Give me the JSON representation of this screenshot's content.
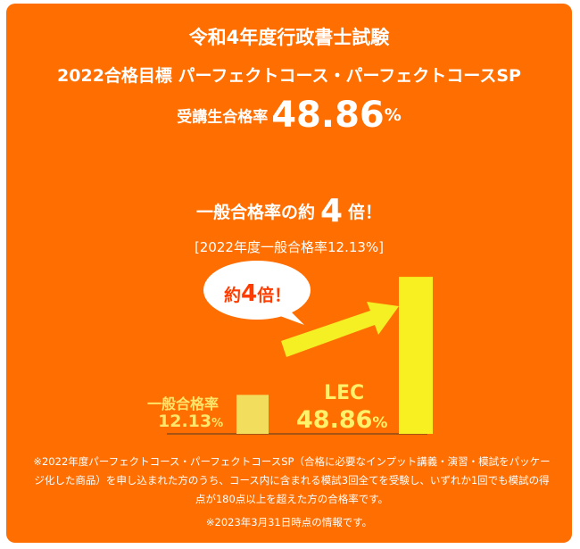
{
  "header": {
    "title": "令和4年度行政書士試験",
    "course": "2022合格目標 パーフェクトコース・パーフェクトコースSP",
    "pass_rate_label": "受講生合格率",
    "pass_rate_value": "48.86",
    "pass_rate_unit": "%"
  },
  "comparison": {
    "prefix": "一般合格率の約",
    "multiple": "4",
    "suffix": "倍！",
    "general_note": "[2022年度一般合格率12.13%]"
  },
  "chart_data": {
    "type": "bar",
    "categories": [
      "一般合格率",
      "LEC"
    ],
    "values": [
      12.13,
      48.86
    ],
    "value_labels": [
      "12.13",
      "48.86"
    ],
    "unit": "%",
    "ylim": [
      0,
      50
    ],
    "grid": false,
    "bubble": {
      "prefix": "約",
      "number": "4",
      "suffix": "倍！"
    },
    "colors": {
      "general_bar": "#f2dd5c",
      "lec_bar": "#f8f020",
      "arrow": "#f4f024"
    }
  },
  "footnote": {
    "text": "※2022年度パーフェクトコース・パーフェクトコースSP（合格に必要なインプット講義・演習・模試をパッケージ化した商品）を申し込まれた方のうち、コース内に含まれる模試3回全てを受験し、いずれか1回でも模試の得点が180点以上を超えた方の合格率です。",
    "date_note": "※2023年3月31日時点の情報です。"
  },
  "colors": {
    "background": "#ff6e00",
    "text": "#ffffff"
  }
}
